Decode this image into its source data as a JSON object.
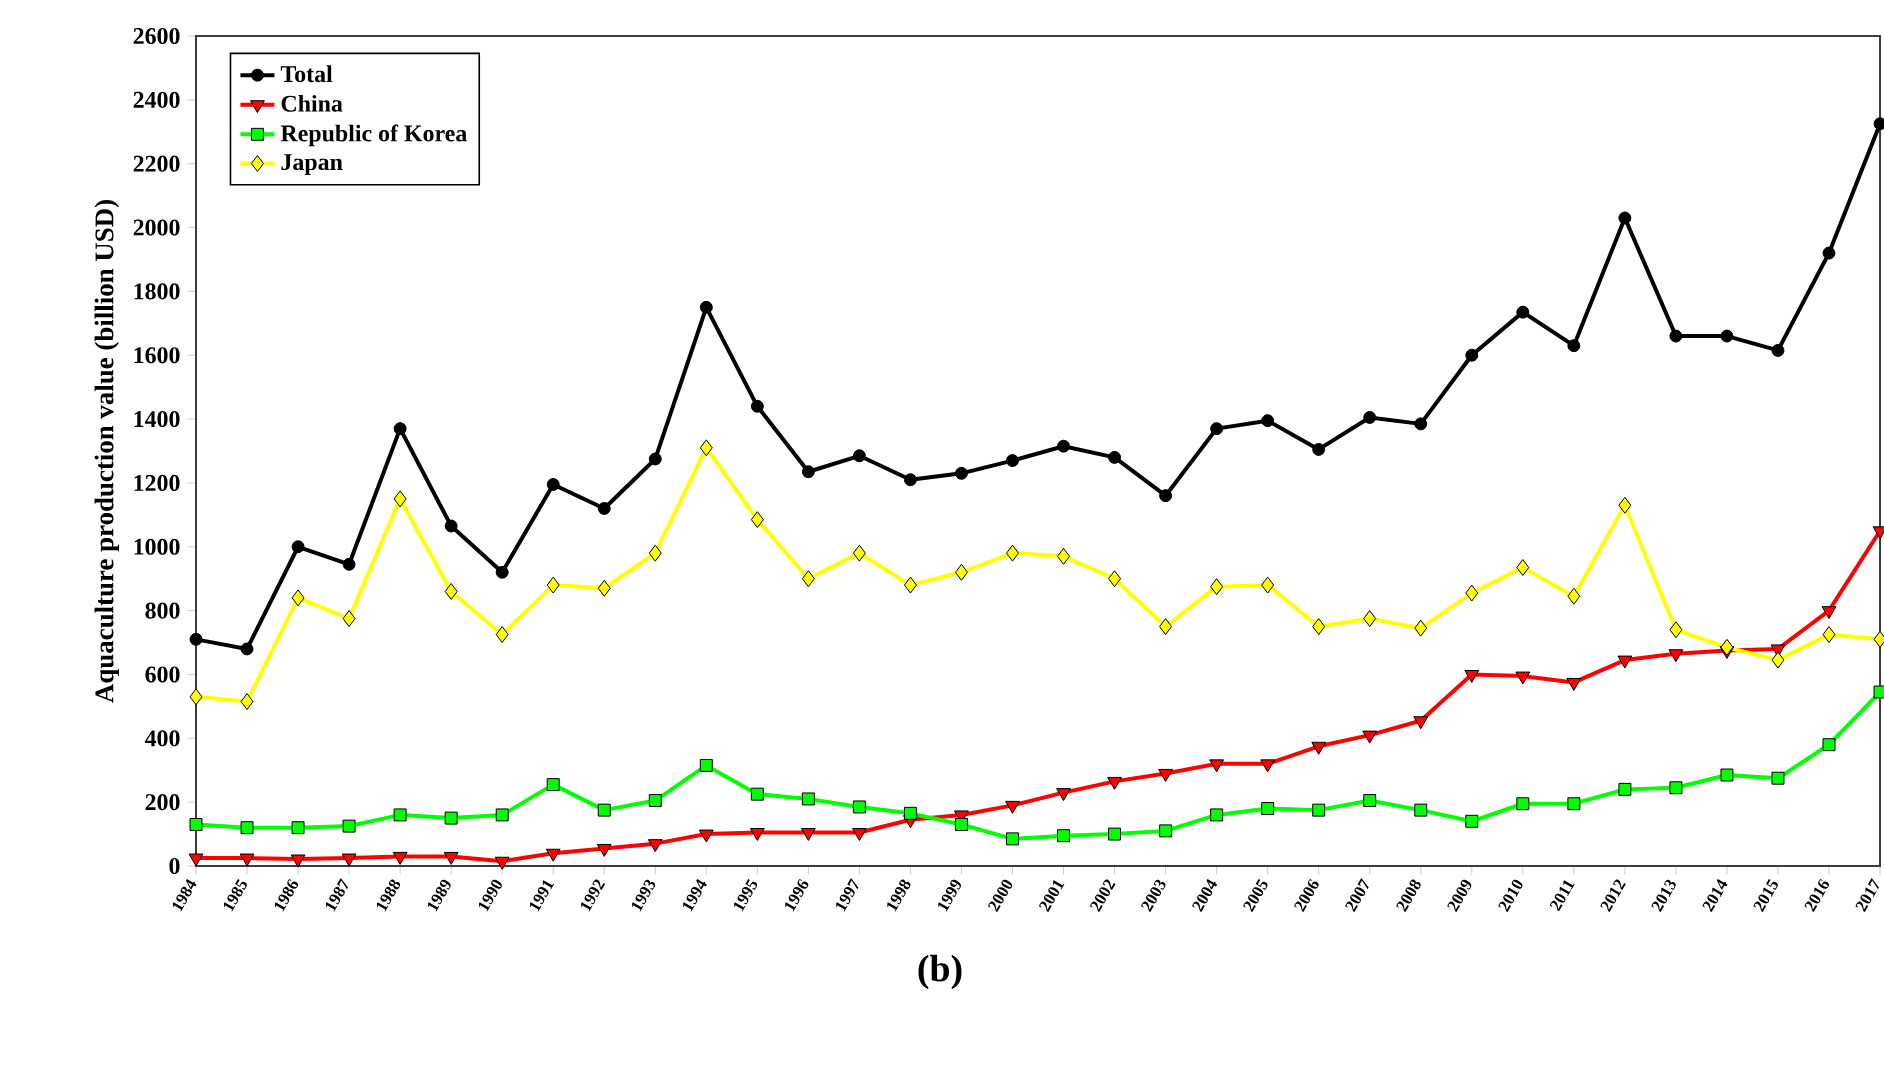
{
  "chart_data": {
    "type": "line",
    "ylabel": "Aquaculture production value (billion USD)",
    "x": [
      1984,
      1985,
      1986,
      1987,
      1988,
      1989,
      1990,
      1991,
      1992,
      1993,
      1994,
      1995,
      1996,
      1997,
      1998,
      1999,
      2000,
      2001,
      2002,
      2003,
      2004,
      2005,
      2006,
      2007,
      2008,
      2009,
      2010,
      2011,
      2012,
      2013,
      2014,
      2015,
      2016,
      2017
    ],
    "series": [
      {
        "name": "Total",
        "color": "#000000",
        "marker": "circle",
        "values": [
          710,
          680,
          1000,
          945,
          1370,
          1065,
          920,
          1195,
          1120,
          1275,
          1750,
          1440,
          1235,
          1285,
          1210,
          1230,
          1270,
          1315,
          1280,
          1160,
          1370,
          1395,
          1305,
          1405,
          1385,
          1600,
          1735,
          1630,
          2030,
          1660,
          1660,
          1615,
          1920,
          2325
        ]
      },
      {
        "name": "China",
        "color": "#ff0000",
        "marker": "triangle",
        "values": [
          25,
          25,
          22,
          25,
          30,
          30,
          15,
          40,
          55,
          70,
          100,
          105,
          105,
          105,
          145,
          160,
          190,
          230,
          265,
          290,
          320,
          320,
          375,
          410,
          455,
          600,
          595,
          575,
          645,
          665,
          675,
          680,
          800,
          1050
        ]
      },
      {
        "name": "Republic of Korea",
        "color": "#00ff00",
        "marker": "square",
        "values": [
          130,
          120,
          120,
          125,
          160,
          150,
          160,
          255,
          175,
          205,
          315,
          225,
          210,
          185,
          165,
          130,
          85,
          95,
          100,
          110,
          160,
          180,
          175,
          205,
          175,
          140,
          195,
          195,
          240,
          245,
          285,
          275,
          380,
          545
        ]
      },
      {
        "name": "Japan",
        "color": "#ffff00",
        "marker": "diamond",
        "values": [
          530,
          515,
          840,
          775,
          1150,
          860,
          725,
          880,
          870,
          980,
          1310,
          1085,
          900,
          980,
          880,
          920,
          980,
          970,
          900,
          750,
          875,
          880,
          750,
          775,
          745,
          855,
          935,
          845,
          1130,
          740,
          685,
          645,
          725,
          710
        ]
      }
    ],
    "xlim": [
      1984,
      2017
    ],
    "xticks": [
      1984,
      1985,
      1986,
      1987,
      1988,
      1989,
      1990,
      1991,
      1992,
      1993,
      1994,
      1995,
      1996,
      1997,
      1998,
      1999,
      2000,
      2001,
      2002,
      2003,
      2004,
      2005,
      2006,
      2007,
      2008,
      2009,
      2010,
      2011,
      2012,
      2013,
      2014,
      2015,
      2016,
      2017
    ],
    "ylim": [
      0,
      2600
    ],
    "yticks": [
      0,
      200,
      400,
      600,
      800,
      1000,
      1200,
      1400,
      1600,
      1800,
      2000,
      2200,
      2400,
      2600
    ],
    "legend": "top left",
    "grid": false,
    "line_style": "solid",
    "annotations": [
      "(b)"
    ]
  }
}
